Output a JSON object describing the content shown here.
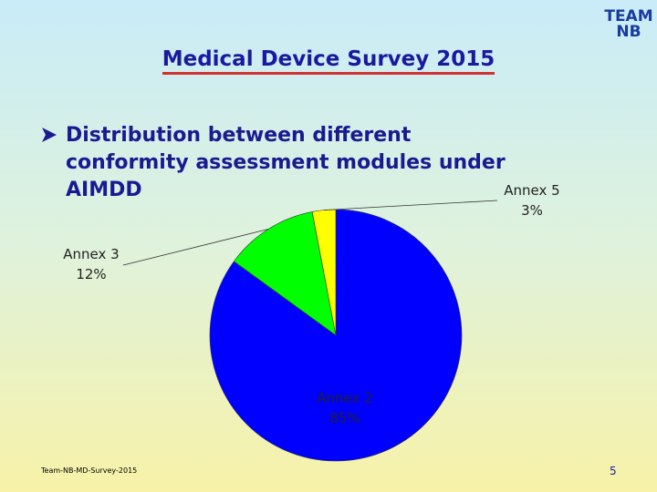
{
  "header": {
    "title": "Medical Device Survey 2015",
    "logo_top": "TEAM",
    "logo_bottom": "NB"
  },
  "bullet": "Distribution between different conformity assessment modules under AIMDD",
  "chart_data": {
    "type": "pie",
    "categories": [
      "Annex 2",
      "Annex 3",
      "Annex 5"
    ],
    "values": [
      85,
      12,
      3
    ],
    "value_labels": [
      "85%",
      "12%",
      "3%"
    ],
    "colors": [
      "#0000ff",
      "#00ff00",
      "#ffff00"
    ]
  },
  "footer": {
    "source": "Team-NB-MD-Survey-2015",
    "page": "5"
  }
}
